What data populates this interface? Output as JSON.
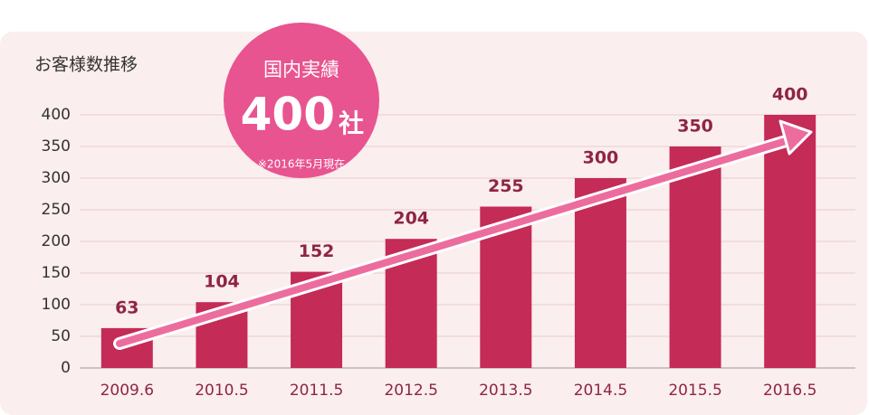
{
  "chart_data": {
    "type": "bar",
    "title": "お客様数推移",
    "badge_label": "国内実績",
    "badge_value": "400",
    "badge_unit": "社",
    "badge_note": "※2016年5月現在",
    "categories": [
      "2009.6",
      "2010.5",
      "2011.5",
      "2012.5",
      "2013.5",
      "2014.5",
      "2015.5",
      "2016.5"
    ],
    "values": [
      63,
      104,
      152,
      204,
      255,
      300,
      350,
      400
    ],
    "color": "#c42b57",
    "ylim": [
      0,
      400
    ],
    "yticks": [
      0,
      50,
      100,
      150,
      200,
      250,
      300,
      350,
      400
    ],
    "grid": true
  }
}
